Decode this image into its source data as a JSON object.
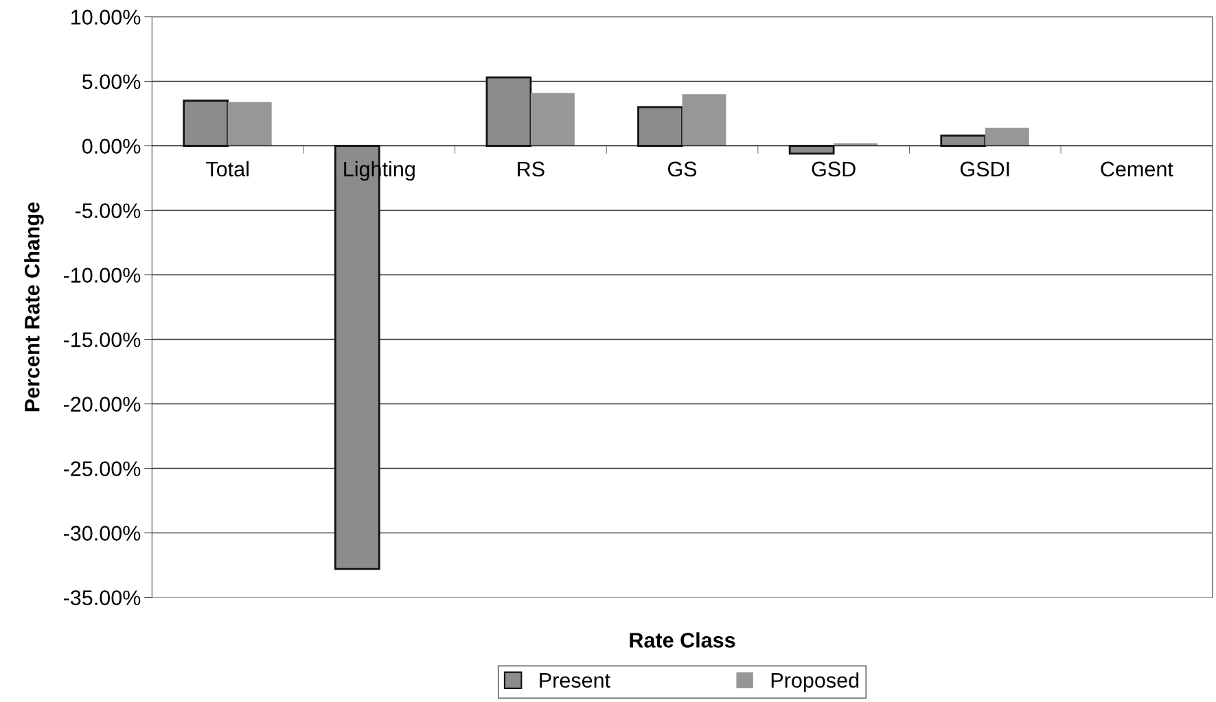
{
  "chart_data": {
    "type": "bar",
    "xlabel": "Rate Class",
    "ylabel": "Percent Rate Change",
    "categories": [
      "Total",
      "Lighting",
      "RS",
      "GS",
      "GSD",
      "GSDI",
      "Cement"
    ],
    "series": [
      {
        "name": "Present",
        "color": "#8c8c8c",
        "values": [
          3.5,
          -32.8,
          5.3,
          3.0,
          -0.6,
          0.8,
          null
        ]
      },
      {
        "name": "Proposed",
        "color": "#979797",
        "values": [
          3.4,
          null,
          4.1,
          4.0,
          0.2,
          1.4,
          null
        ]
      }
    ],
    "ylim": [
      -35,
      10
    ],
    "yticks": [
      {
        "value": 10,
        "label": "10.00%"
      },
      {
        "value": 5,
        "label": "5.00%"
      },
      {
        "value": 0,
        "label": "0.00%"
      },
      {
        "value": -5,
        "label": "-5.00%"
      },
      {
        "value": -10,
        "label": "-10.00%"
      },
      {
        "value": -15,
        "label": "-15.00%"
      },
      {
        "value": -20,
        "label": "-20.00%"
      },
      {
        "value": -25,
        "label": "-25.00%"
      },
      {
        "value": -30,
        "label": "-30.00%"
      },
      {
        "value": -35,
        "label": "-35.00%"
      }
    ],
    "grid": "y",
    "legend": "bottom"
  }
}
